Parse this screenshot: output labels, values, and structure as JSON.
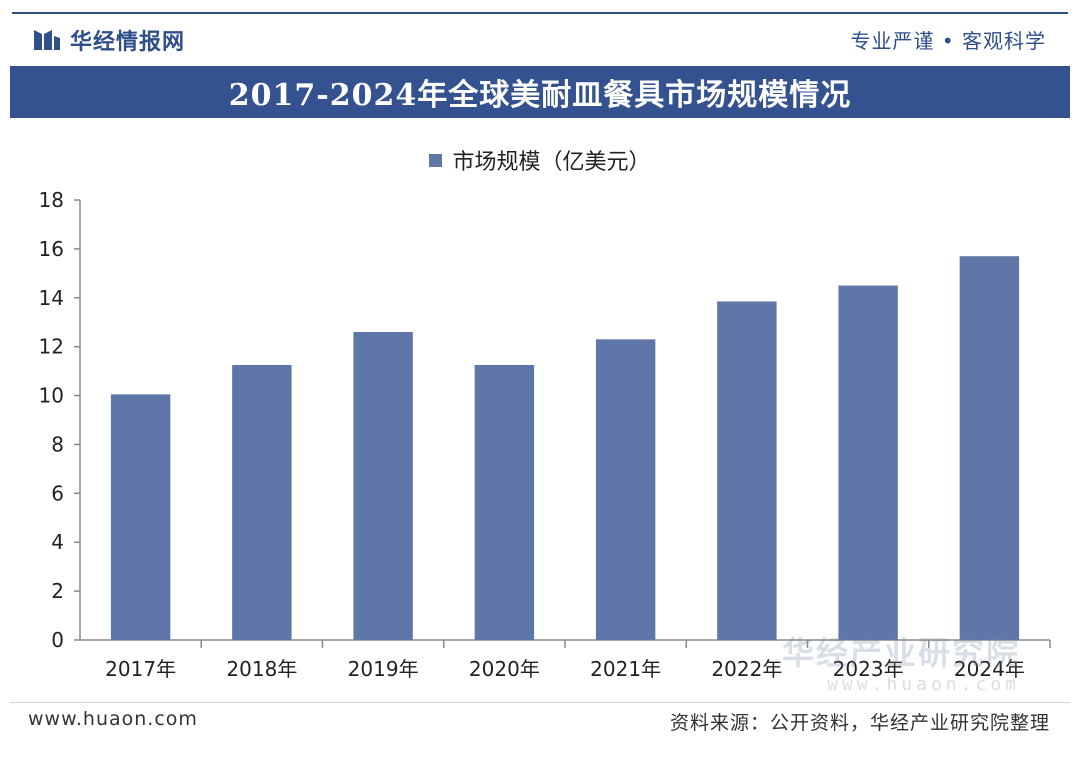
{
  "header": {
    "brand_name": "华经情报网",
    "slogan": "专业严谨 • 客观科学"
  },
  "footer": {
    "site": "www.huaon.com",
    "source": "资料来源：公开资料，华经产业研究院整理"
  },
  "watermark": {
    "name": "华经产业研究院",
    "url": "www.huaon.com"
  },
  "colors": {
    "bar": "#5e76a8",
    "title_bar": "#34528f",
    "brand": "#2f4f8a"
  },
  "icons": {
    "brand_logo": "brand-logo-icon",
    "legend_swatch": "square-swatch"
  },
  "chart_data": {
    "type": "bar",
    "title": "2017-2024年全球美耐皿餐具市场规模情况",
    "categories": [
      "2017年",
      "2018年",
      "2019年",
      "2020年",
      "2021年",
      "2022年",
      "2023年",
      "2024年"
    ],
    "series": [
      {
        "name": "市场规模（亿美元）",
        "values": [
          10.05,
          11.25,
          12.6,
          11.25,
          12.3,
          13.85,
          14.5,
          15.7
        ]
      }
    ],
    "ylim": [
      0,
      18
    ],
    "yticks": [
      0,
      2,
      4,
      6,
      8,
      10,
      12,
      14,
      16,
      18
    ],
    "grid": false,
    "legend": "top-center",
    "xlabel": "",
    "ylabel": ""
  }
}
